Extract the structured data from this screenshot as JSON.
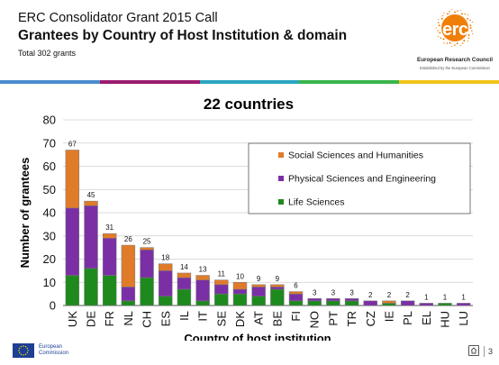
{
  "header": {
    "line1": "ERC Consolidator Grant 2015 Call",
    "line2": "Grantees by Country of Host Institution & domain",
    "line3": "Total 302 grants"
  },
  "logo": {
    "acronym": "erc",
    "name": "European Research Council",
    "tagline": "Established by the European Commission",
    "color": "#f07f0a"
  },
  "stripe_colors": [
    "#4a8ccf",
    "#9b1b6e",
    "#2aa5c0",
    "#39b54a",
    "#f0c419"
  ],
  "chart_data": {
    "type": "bar",
    "stacked": true,
    "title": "22 countries",
    "xlabel": "Country of host institution",
    "ylabel": "Number of grantees",
    "ylim": [
      0,
      80
    ],
    "yticks": [
      0,
      10,
      20,
      30,
      40,
      50,
      60,
      70,
      80
    ],
    "grid": true,
    "legend_position": "top-right",
    "categories": [
      "UK",
      "DE",
      "FR",
      "NL",
      "CH",
      "ES",
      "IL",
      "IT",
      "SE",
      "DK",
      "AT",
      "BE",
      "FI",
      "NO",
      "PT",
      "TR",
      "CZ",
      "IE",
      "PL",
      "EL",
      "HU",
      "LU"
    ],
    "series": [
      {
        "name": "Life Sciences",
        "color": "#1e8a1e",
        "values": [
          13,
          16,
          13,
          2,
          12,
          4,
          7,
          2,
          5,
          5,
          4,
          7,
          2,
          2,
          2,
          2,
          0,
          1,
          0,
          0,
          1,
          0
        ]
      },
      {
        "name": "Physical Sciences and Engineering",
        "color": "#7b2fa5",
        "values": [
          29,
          27,
          16,
          6,
          12,
          11,
          5,
          9,
          4,
          2,
          4,
          1,
          3,
          1,
          1,
          1,
          2,
          0,
          2,
          1,
          0,
          1
        ]
      },
      {
        "name": "Social Sciences and Humanities",
        "color": "#e07b2a",
        "values": [
          25,
          2,
          2,
          18,
          1,
          3,
          2,
          2,
          2,
          3,
          1,
          1,
          1,
          0,
          0,
          0,
          0,
          1,
          0,
          0,
          0,
          0
        ]
      }
    ],
    "totals": [
      67,
      45,
      31,
      26,
      25,
      18,
      14,
      13,
      11,
      10,
      9,
      9,
      6,
      3,
      3,
      3,
      2,
      2,
      2,
      1,
      1,
      1
    ],
    "legend_order": [
      "Social Sciences and Humanities",
      "Physical Sciences and Engineering",
      "Life Sciences"
    ]
  },
  "footer": {
    "ec_line1": "European",
    "ec_line2": "Commission",
    "page_number": "3"
  }
}
